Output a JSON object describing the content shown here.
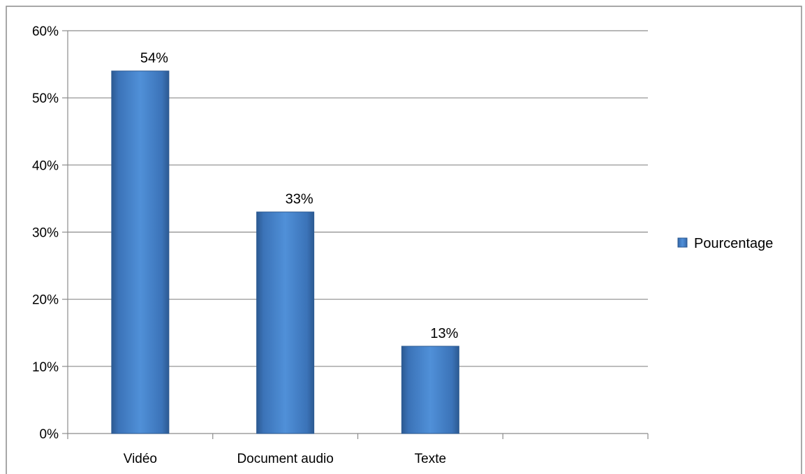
{
  "chart_data": {
    "type": "bar",
    "categories": [
      "Vidéo",
      "Document audio",
      "Texte",
      ""
    ],
    "series": [
      {
        "name": "Pourcentage",
        "values": [
          54,
          33,
          13,
          null
        ],
        "data_labels": [
          "54%",
          "33%",
          "13%",
          ""
        ],
        "color": "#4a86cc"
      }
    ],
    "title": "",
    "xlabel": "",
    "ylabel": "",
    "ylim": [
      0,
      60
    ],
    "y_ticks": [
      {
        "value": 0,
        "label": "0%"
      },
      {
        "value": 10,
        "label": "10%"
      },
      {
        "value": 20,
        "label": "20%"
      },
      {
        "value": 30,
        "label": "30%"
      },
      {
        "value": 40,
        "label": "40%"
      },
      {
        "value": 50,
        "label": "50%"
      },
      {
        "value": 60,
        "label": "60%"
      }
    ],
    "grid": true,
    "legend": {
      "position": "right",
      "entries": [
        "Pourcentage"
      ]
    },
    "colors": {
      "bar": "#4a86cc",
      "bar_edge": "#2c5a92",
      "gridline": "#8c8c8c",
      "frame": "#8c8c8c"
    }
  }
}
